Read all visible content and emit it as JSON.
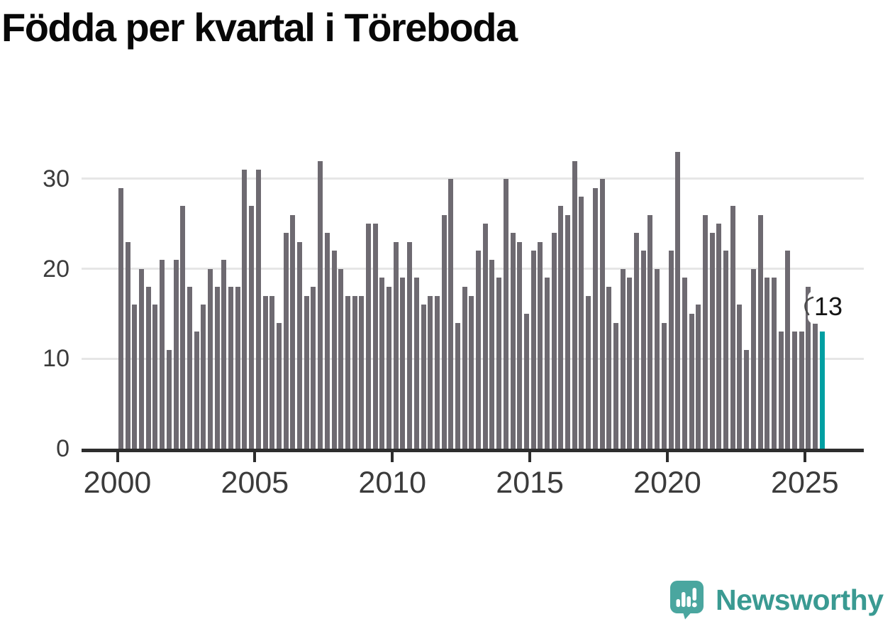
{
  "title": "Födda per kvartal i Töreboda",
  "annotation": {
    "label": "13"
  },
  "branding": {
    "wordmark": "Newsworthy",
    "icon": "newsworthy-logo-icon"
  },
  "colors": {
    "bar": "#6e6a71",
    "highlight": "#009fa2",
    "axis": "#2d2d2d",
    "grid": "#e6e6e6",
    "tick_label": "#3b3b3b",
    "title": "#080808",
    "annotation_bg": "#ffffff",
    "annotation_text": "#141414",
    "logo_bubble": "#4aa69f",
    "logo_wordmark": "#3a9a92"
  },
  "chart_data": {
    "type": "bar",
    "title": "Födda per kvartal i Töreboda",
    "xlabel": "",
    "ylabel": "",
    "ylim": [
      0,
      33
    ],
    "grid": "horizontal",
    "legend": "none",
    "y_ticks": [
      {
        "label": "0",
        "value": 0
      },
      {
        "label": "10",
        "value": 10
      },
      {
        "label": "20",
        "value": 20
      },
      {
        "label": "30",
        "value": 30
      }
    ],
    "x_ticks": [
      {
        "label": "2000",
        "bar_index": 0
      },
      {
        "label": "2005",
        "bar_index": 20
      },
      {
        "label": "2010",
        "bar_index": 40
      },
      {
        "label": "2015",
        "bar_index": 60
      },
      {
        "label": "2020",
        "bar_index": 80
      },
      {
        "label": "2025",
        "bar_index": 100
      }
    ],
    "highlight_index": 102,
    "last_value_label": "13",
    "quarters": [
      "2000Q1",
      "2000Q2",
      "2000Q3",
      "2000Q4",
      "2001Q1",
      "2001Q2",
      "2001Q3",
      "2001Q4",
      "2002Q1",
      "2002Q2",
      "2002Q3",
      "2002Q4",
      "2003Q1",
      "2003Q2",
      "2003Q3",
      "2003Q4",
      "2004Q1",
      "2004Q2",
      "2004Q3",
      "2004Q4",
      "2005Q1",
      "2005Q2",
      "2005Q3",
      "2005Q4",
      "2006Q1",
      "2006Q2",
      "2006Q3",
      "2006Q4",
      "2007Q1",
      "2007Q2",
      "2007Q3",
      "2007Q4",
      "2008Q1",
      "2008Q2",
      "2008Q3",
      "2008Q4",
      "2009Q1",
      "2009Q2",
      "2009Q3",
      "2009Q4",
      "2010Q1",
      "2010Q2",
      "2010Q3",
      "2010Q4",
      "2011Q1",
      "2011Q2",
      "2011Q3",
      "2011Q4",
      "2012Q1",
      "2012Q2",
      "2012Q3",
      "2012Q4",
      "2013Q1",
      "2013Q2",
      "2013Q3",
      "2013Q4",
      "2014Q1",
      "2014Q2",
      "2014Q3",
      "2014Q4",
      "2015Q1",
      "2015Q2",
      "2015Q3",
      "2015Q4",
      "2016Q1",
      "2016Q2",
      "2016Q3",
      "2016Q4",
      "2017Q1",
      "2017Q2",
      "2017Q3",
      "2017Q4",
      "2018Q1",
      "2018Q2",
      "2018Q3",
      "2018Q4",
      "2019Q1",
      "2019Q2",
      "2019Q3",
      "2019Q4",
      "2020Q1",
      "2020Q2",
      "2020Q3",
      "2020Q4",
      "2021Q1",
      "2021Q2",
      "2021Q3",
      "2021Q4",
      "2022Q1",
      "2022Q2",
      "2022Q3",
      "2022Q4",
      "2023Q1",
      "2023Q2",
      "2023Q3",
      "2023Q4",
      "2024Q1",
      "2024Q2",
      "2024Q3",
      "2024Q4",
      "2025Q1",
      "2025Q2",
      "2025Q3"
    ],
    "values": [
      29,
      23,
      16,
      20,
      18,
      16,
      21,
      11,
      21,
      27,
      18,
      13,
      16,
      20,
      18,
      21,
      18,
      18,
      31,
      27,
      31,
      17,
      17,
      14,
      24,
      26,
      23,
      17,
      18,
      32,
      24,
      22,
      20,
      17,
      17,
      17,
      25,
      25,
      19,
      18,
      23,
      19,
      23,
      19,
      16,
      17,
      17,
      26,
      30,
      14,
      18,
      17,
      22,
      25,
      21,
      19,
      30,
      24,
      23,
      15,
      22,
      23,
      19,
      24,
      27,
      26,
      32,
      28,
      17,
      29,
      30,
      18,
      14,
      20,
      19,
      24,
      22,
      26,
      20,
      14,
      22,
      33,
      19,
      15,
      16,
      26,
      24,
      25,
      22,
      27,
      16,
      11,
      20,
      26,
      19,
      19,
      13,
      22,
      13,
      13,
      18,
      14,
      13
    ]
  }
}
